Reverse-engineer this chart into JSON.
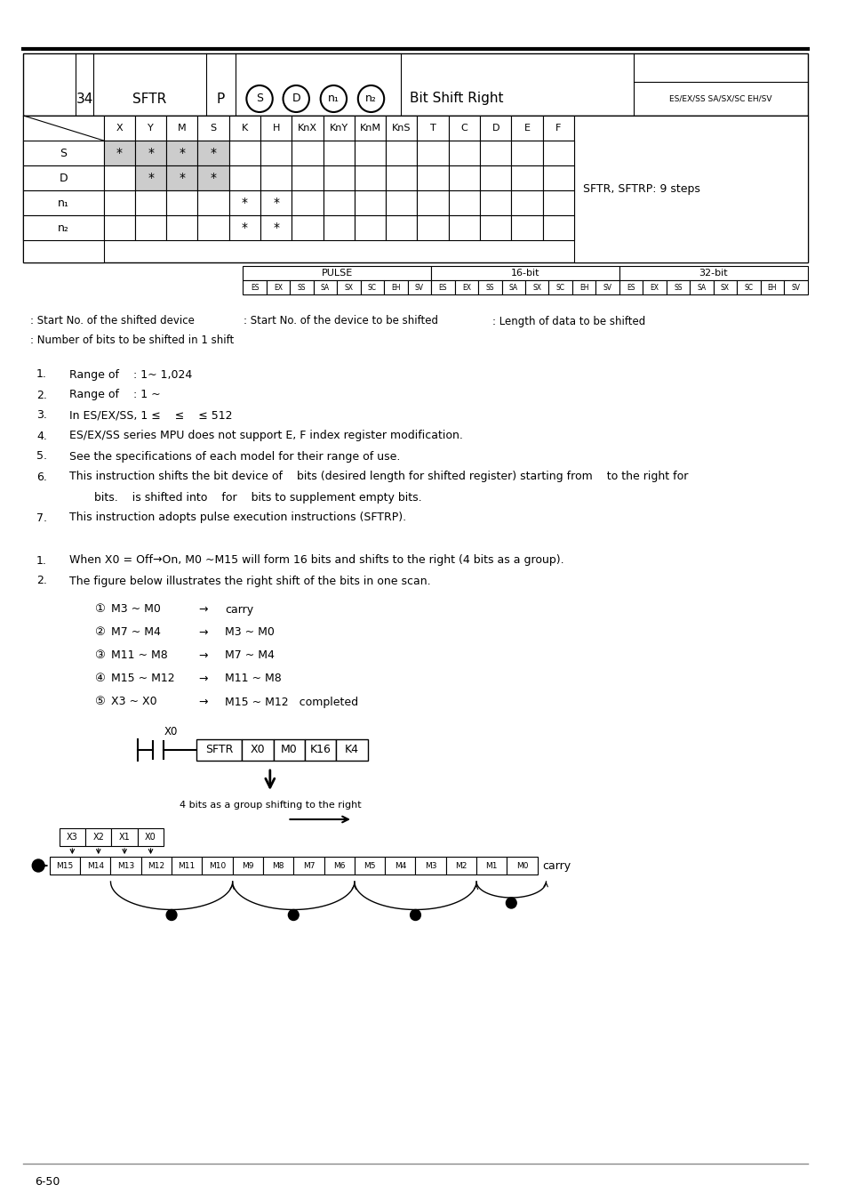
{
  "page_number": "6-50",
  "instruction_number": "34",
  "instruction_name": "SFTR",
  "instruction_p": "P",
  "instruction_desc": "Bit Shift Right",
  "support_label_top": "ES/EX/SS SA/SX/SC EH/SV",
  "col_headers": [
    "X",
    "Y",
    "M",
    "S",
    "K",
    "H",
    "KnX",
    "KnY",
    "KnM",
    "KnS",
    "T",
    "C",
    "D",
    "E",
    "F"
  ],
  "operand_stars": {
    "S": [
      0,
      1,
      2,
      3
    ],
    "D": [
      1,
      2,
      3
    ],
    "n1": [
      4,
      5
    ],
    "n2": [
      4,
      5
    ]
  },
  "operand_gray": {
    "S": [
      0,
      1,
      2,
      3
    ],
    "D": [
      1,
      2,
      3
    ]
  },
  "steps_text": "SFTR, SFTRP: 9 steps",
  "pulse_sub": [
    "ES",
    "EX",
    "SS",
    "SA",
    "SX",
    "SC",
    "EH",
    "SV"
  ],
  "background": "#ffffff",
  "gray_fill": "#cccccc",
  "line_color": "#000000"
}
